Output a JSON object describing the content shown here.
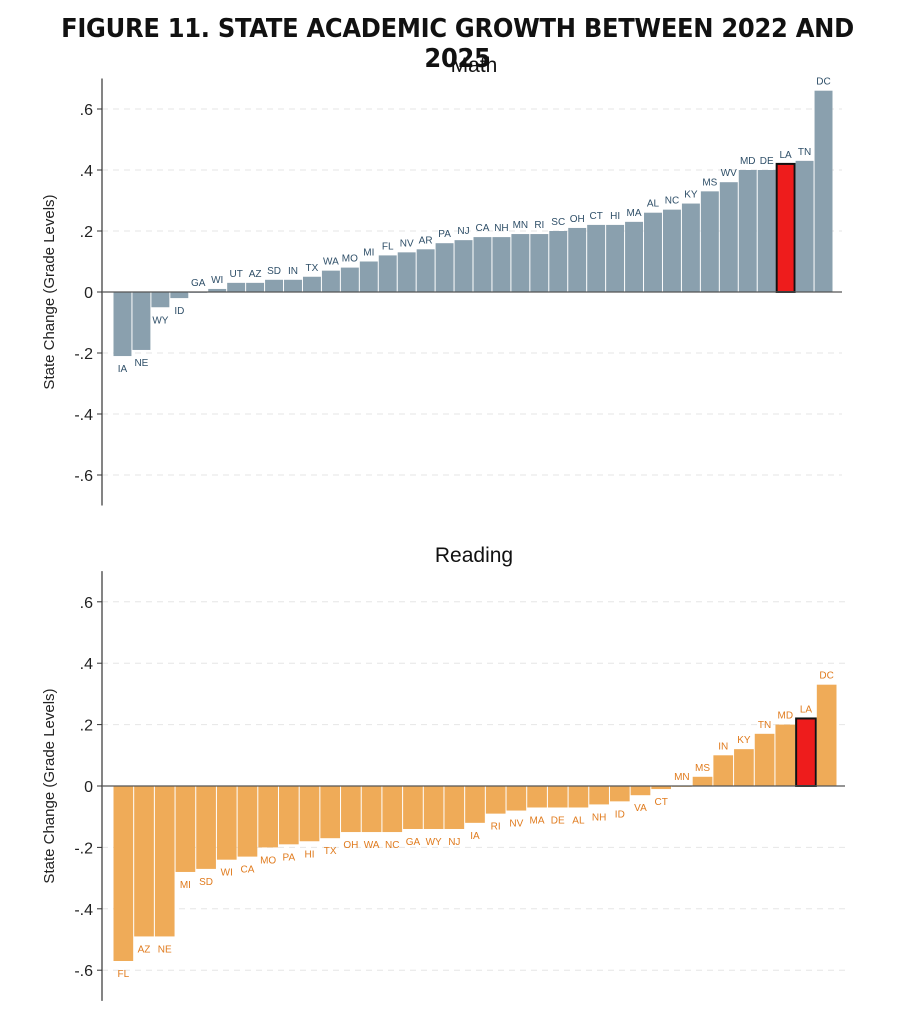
{
  "figure_title": "FIGURE 11. STATE ACADEMIC GROWTH BETWEEN 2022 AND 2025",
  "colors": {
    "math": "#8aa0ae",
    "reading": "#efab58",
    "highlight": "#ee1c1c",
    "math_label": "#2f4f68",
    "reading_label": "#e07b1e"
  },
  "highlight_state": "LA",
  "chart_data": [
    {
      "type": "bar",
      "title": "Math",
      "ylabel": "State Change (Grade Levels)",
      "xlabel": "",
      "ylim": [
        -0.7,
        0.7
      ],
      "yticks": [
        0.6,
        0.4,
        0.2,
        0,
        -0.2,
        -0.4,
        -0.6
      ],
      "ytick_labels": [
        ".6",
        ".4",
        ".2",
        "0",
        "-.2",
        "-.4",
        "-.6"
      ],
      "grid": true,
      "categories": [
        "IA",
        "NE",
        "WY",
        "ID",
        "GA",
        "WI",
        "UT",
        "AZ",
        "SD",
        "IN",
        "TX",
        "WA",
        "MO",
        "MI",
        "FL",
        "NV",
        "AR",
        "PA",
        "NJ",
        "CA",
        "NH",
        "MN",
        "RI",
        "SC",
        "OH",
        "CT",
        "HI",
        "MA",
        "AL",
        "NC",
        "KY",
        "MS",
        "WV",
        "MD",
        "DE",
        "LA",
        "TN",
        "DC"
      ],
      "values": [
        -0.21,
        -0.19,
        -0.05,
        -0.02,
        0.0,
        0.01,
        0.03,
        0.03,
        0.04,
        0.04,
        0.05,
        0.07,
        0.08,
        0.1,
        0.12,
        0.13,
        0.14,
        0.16,
        0.17,
        0.18,
        0.18,
        0.19,
        0.19,
        0.2,
        0.21,
        0.22,
        0.22,
        0.23,
        0.26,
        0.27,
        0.29,
        0.33,
        0.36,
        0.4,
        0.4,
        0.42,
        0.43,
        0.66
      ]
    },
    {
      "type": "bar",
      "title": "Reading",
      "ylabel": "State Change (Grade Levels)",
      "xlabel": "",
      "ylim": [
        -0.7,
        0.7
      ],
      "yticks": [
        0.6,
        0.4,
        0.2,
        0,
        -0.2,
        -0.4,
        -0.6
      ],
      "ytick_labels": [
        ".6",
        ".4",
        ".2",
        "0",
        "-.2",
        "-.4",
        "-.6"
      ],
      "grid": true,
      "categories": [
        "FL",
        "AZ",
        "NE",
        "MI",
        "SD",
        "WI",
        "CA",
        "MO",
        "PA",
        "HI",
        "TX",
        "OH",
        "WA",
        "NC",
        "GA",
        "WY",
        "NJ",
        "IA",
        "RI",
        "NV",
        "MA",
        "DE",
        "AL",
        "NH",
        "ID",
        "VA",
        "CT",
        "MN",
        "MS",
        "IN",
        "KY",
        "TN",
        "MD",
        "LA",
        "DC"
      ],
      "values": [
        -0.57,
        -0.49,
        -0.49,
        -0.28,
        -0.27,
        -0.24,
        -0.23,
        -0.2,
        -0.19,
        -0.18,
        -0.17,
        -0.15,
        -0.15,
        -0.15,
        -0.14,
        -0.14,
        -0.14,
        -0.12,
        -0.09,
        -0.08,
        -0.07,
        -0.07,
        -0.07,
        -0.06,
        -0.05,
        -0.03,
        -0.01,
        0.0,
        0.03,
        0.1,
        0.12,
        0.17,
        0.2,
        0.22,
        0.33
      ]
    }
  ]
}
